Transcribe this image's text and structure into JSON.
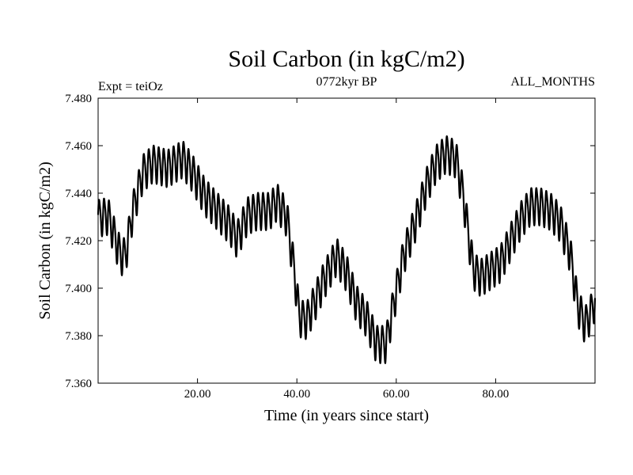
{
  "chart_data": {
    "type": "line",
    "title": "Soil Carbon (in kgC/m2)",
    "subtitle_left": "Expt = teiOz",
    "subtitle_center": "0772kyr BP",
    "subtitle_right": "ALL_MONTHS",
    "xlabel": "Time (in years since start)",
    "ylabel": "Soil Carbon (in kgC/m2)",
    "xlim": [
      0,
      100
    ],
    "ylim": [
      7.36,
      7.48
    ],
    "x_ticks": [
      20,
      40,
      60,
      80
    ],
    "x_tick_labels": [
      "20.00",
      "40.00",
      "60.00",
      "80.00"
    ],
    "y_ticks": [
      7.36,
      7.38,
      7.4,
      7.42,
      7.44,
      7.46,
      7.48
    ],
    "y_tick_labels": [
      "7.360",
      "7.380",
      "7.400",
      "7.420",
      "7.440",
      "7.460",
      "7.480"
    ],
    "seasonal_amplitude": 0.0075,
    "series": [
      {
        "name": "Soil Carbon",
        "baseline_x": [
          0,
          2,
          4.5,
          5.5,
          7,
          9,
          11,
          14,
          17,
          19,
          21.5,
          24,
          26.5,
          28,
          30,
          32,
          34.5,
          36,
          38,
          39.5,
          40.5,
          42,
          43.5,
          45.5,
          48,
          50,
          52,
          54,
          56,
          58,
          59.5,
          61.5,
          64,
          66,
          68,
          70,
          72,
          73.5,
          74.5,
          75.5,
          77,
          79,
          81,
          83,
          85,
          87,
          89,
          91,
          93,
          95,
          96.5,
          98,
          99,
          100
        ],
        "baseline_y": [
          7.43,
          7.431,
          7.414,
          7.414,
          7.433,
          7.449,
          7.453,
          7.451,
          7.455,
          7.449,
          7.439,
          7.433,
          7.427,
          7.421,
          7.431,
          7.433,
          7.433,
          7.437,
          7.43,
          7.407,
          7.388,
          7.387,
          7.394,
          7.404,
          7.414,
          7.407,
          7.394,
          7.388,
          7.377,
          7.377,
          7.394,
          7.414,
          7.429,
          7.443,
          7.453,
          7.457,
          7.455,
          7.439,
          7.423,
          7.408,
          7.405,
          7.408,
          7.411,
          7.42,
          7.429,
          7.435,
          7.435,
          7.433,
          7.428,
          7.415,
          7.393,
          7.385,
          7.389,
          7.395
        ]
      }
    ]
  }
}
